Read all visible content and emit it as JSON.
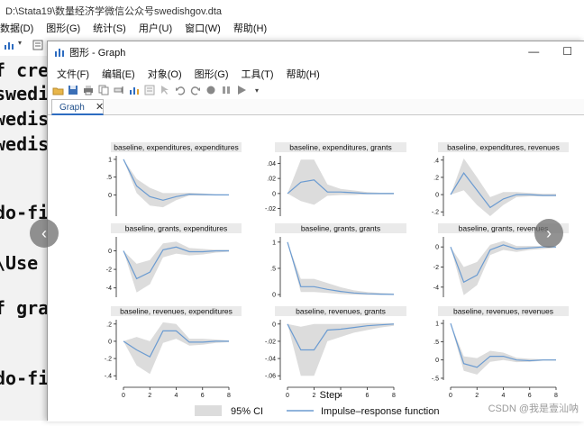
{
  "stata": {
    "title": "D:\\Stata19\\数量经济学微信公众号swedishgov.dta",
    "menu": [
      "数据(D)",
      "图形(G)",
      "统计(S)",
      "用户(U)",
      "窗口(W)",
      "帮助(H)"
    ],
    "results_lines": [
      "f crea",
      "swedis",
      "wedis",
      "wedis",
      "do-fi",
      "\\Use",
      "f grap",
      "do-fi"
    ]
  },
  "graph_window": {
    "title": "图形 - Graph",
    "minimize": "—",
    "maximize": "☐",
    "menu": [
      "文件(F)",
      "编辑(E)",
      "对象(O)",
      "图形(G)",
      "工具(T)",
      "帮助(H)"
    ],
    "tab_label": "Graph",
    "tab_close": "✕",
    "nav_prev": "‹",
    "nav_next": "›"
  },
  "watermark": "CSDN @我是壹汕呐",
  "colors": {
    "ci_fill": "#dcdcdc",
    "irf_line": "#6b9bd1",
    "panel_header": "#eaeaea",
    "accent": "#2d6cc0"
  },
  "chart_data": {
    "type": "line",
    "xlabel": "Step",
    "x": [
      0,
      1,
      2,
      3,
      4,
      5,
      6,
      7,
      8
    ],
    "xticks": [
      0,
      2,
      4,
      6,
      8
    ],
    "legend": [
      {
        "name": "95% CI",
        "kind": "area"
      },
      {
        "name": "Impulse–response function",
        "kind": "line"
      }
    ],
    "legend_position": "bottom",
    "panels": [
      {
        "title": "baseline, expenditures, expenditures",
        "ylim": [
          -0.6,
          1.1
        ],
        "yticks": [
          0,
          0.5,
          1
        ],
        "yticklabels": [
          "0",
          ".5",
          "1"
        ],
        "irf": [
          1.0,
          0.25,
          -0.05,
          -0.15,
          -0.05,
          0.02,
          0.01,
          0.0,
          0.0
        ],
        "lo": [
          1.0,
          0.05,
          -0.3,
          -0.35,
          -0.15,
          -0.02,
          -0.02,
          -0.01,
          -0.01
        ],
        "hi": [
          1.0,
          0.45,
          0.2,
          0.05,
          0.05,
          0.06,
          0.04,
          0.02,
          0.01
        ]
      },
      {
        "title": "baseline, expenditures, grants",
        "ylim": [
          -0.03,
          0.05
        ],
        "yticks": [
          -0.02,
          0,
          0.02,
          0.04
        ],
        "yticklabels": [
          "-.02",
          "0",
          ".02",
          ".04"
        ],
        "irf": [
          0.0,
          0.015,
          0.018,
          0.002,
          0.002,
          0.001,
          0.0,
          0.0,
          0.0
        ],
        "lo": [
          0.0,
          -0.01,
          -0.015,
          -0.003,
          -0.002,
          -0.002,
          -0.001,
          -0.001,
          -0.001
        ],
        "hi": [
          0.0,
          0.045,
          0.045,
          0.012,
          0.006,
          0.004,
          0.002,
          0.001,
          0.001
        ]
      },
      {
        "title": "baseline, expenditures, revenues",
        "ylim": [
          -0.25,
          0.45
        ],
        "yticks": [
          -0.2,
          0,
          0.2,
          0.4
        ],
        "yticklabels": [
          "-.2",
          "0",
          ".2",
          ".4"
        ],
        "irf": [
          0.0,
          0.25,
          0.05,
          -0.15,
          -0.05,
          0.0,
          0.0,
          -0.01,
          -0.01
        ],
        "lo": [
          0.0,
          0.05,
          -0.12,
          -0.25,
          -0.12,
          -0.03,
          -0.02,
          -0.02,
          -0.02
        ],
        "hi": [
          0.0,
          0.42,
          0.2,
          -0.03,
          0.03,
          0.03,
          0.02,
          0.01,
          0.01
        ]
      },
      {
        "title": "baseline, grants, expenditures",
        "ylim": [
          -5,
          1.5
        ],
        "yticks": [
          -4,
          -2,
          0
        ],
        "yticklabels": [
          "-4",
          "-2",
          "0"
        ],
        "irf": [
          0.0,
          -3.0,
          -2.3,
          0.1,
          0.4,
          -0.1,
          -0.1,
          0.0,
          0.0
        ],
        "lo": [
          0.0,
          -4.5,
          -3.6,
          -0.7,
          -0.3,
          -0.5,
          -0.4,
          -0.2,
          -0.1
        ],
        "hi": [
          0.0,
          -1.4,
          -1.0,
          0.8,
          1.0,
          0.3,
          0.2,
          0.1,
          0.1
        ]
      },
      {
        "title": "baseline, grants, grants",
        "ylim": [
          -0.05,
          1.1
        ],
        "yticks": [
          0,
          0.5,
          1
        ],
        "yticklabels": [
          "0",
          ".5",
          "1"
        ],
        "irf": [
          1.0,
          0.15,
          0.15,
          0.1,
          0.06,
          0.03,
          0.015,
          0.008,
          0.004
        ],
        "lo": [
          1.0,
          0.05,
          0.05,
          0.03,
          0.01,
          0.0,
          -0.005,
          -0.005,
          -0.005
        ],
        "hi": [
          1.0,
          0.3,
          0.3,
          0.22,
          0.14,
          0.08,
          0.05,
          0.03,
          0.02
        ]
      },
      {
        "title": "baseline, grants, revenues",
        "ylim": [
          -5,
          1
        ],
        "yticks": [
          -4,
          -2,
          0
        ],
        "yticklabels": [
          "-4",
          "-2",
          "0"
        ],
        "irf": [
          0.0,
          -3.5,
          -2.8,
          -0.3,
          0.2,
          -0.2,
          -0.1,
          0.0,
          0.0
        ],
        "lo": [
          0.0,
          -4.8,
          -3.8,
          -0.8,
          -0.3,
          -0.5,
          -0.3,
          -0.2,
          -0.1
        ],
        "hi": [
          0.0,
          -2.0,
          -1.5,
          0.2,
          0.6,
          0.1,
          0.1,
          0.1,
          0.1
        ]
      },
      {
        "title": "baseline, revenues, expenditures",
        "ylim": [
          -0.45,
          0.25
        ],
        "yticks": [
          -0.4,
          -0.2,
          0,
          0.2
        ],
        "yticklabels": [
          "-.4",
          "-.2",
          "0",
          ".2"
        ],
        "irf": [
          0.0,
          -0.1,
          -0.18,
          0.12,
          0.12,
          -0.01,
          -0.01,
          0.0,
          0.0
        ],
        "lo": [
          0.0,
          -0.28,
          -0.38,
          -0.02,
          0.03,
          -0.05,
          -0.04,
          -0.02,
          -0.01
        ],
        "hi": [
          0.0,
          0.05,
          0.0,
          0.22,
          0.2,
          0.03,
          0.03,
          0.02,
          0.01
        ]
      },
      {
        "title": "baseline, revenues, grants",
        "ylim": [
          -0.065,
          0.005
        ],
        "yticks": [
          -0.06,
          -0.04,
          -0.02,
          0
        ],
        "yticklabels": [
          "-.06",
          "-.04",
          "-.02",
          "0"
        ],
        "irf": [
          0.0,
          -0.03,
          -0.03,
          -0.007,
          -0.006,
          -0.004,
          -0.002,
          -0.001,
          0.0
        ],
        "lo": [
          0.0,
          -0.06,
          -0.06,
          -0.02,
          -0.015,
          -0.01,
          -0.007,
          -0.004,
          -0.002
        ],
        "hi": [
          0.0,
          -0.003,
          0.0,
          0.0,
          0.0,
          0.0,
          0.001,
          0.001,
          0.001
        ]
      },
      {
        "title": "baseline, revenues, revenues",
        "ylim": [
          -0.55,
          1.1
        ],
        "yticks": [
          -0.5,
          0,
          0.5,
          1
        ],
        "yticklabels": [
          "-.5",
          "0",
          ".5",
          "1"
        ],
        "irf": [
          1.0,
          -0.1,
          -0.2,
          0.1,
          0.1,
          0.0,
          -0.02,
          0.0,
          0.0
        ],
        "lo": [
          1.0,
          -0.3,
          -0.4,
          -0.05,
          0.0,
          -0.06,
          -0.05,
          -0.02,
          -0.02
        ],
        "hi": [
          1.0,
          0.1,
          0.05,
          0.25,
          0.2,
          0.06,
          0.03,
          0.02,
          0.02
        ]
      }
    ]
  }
}
